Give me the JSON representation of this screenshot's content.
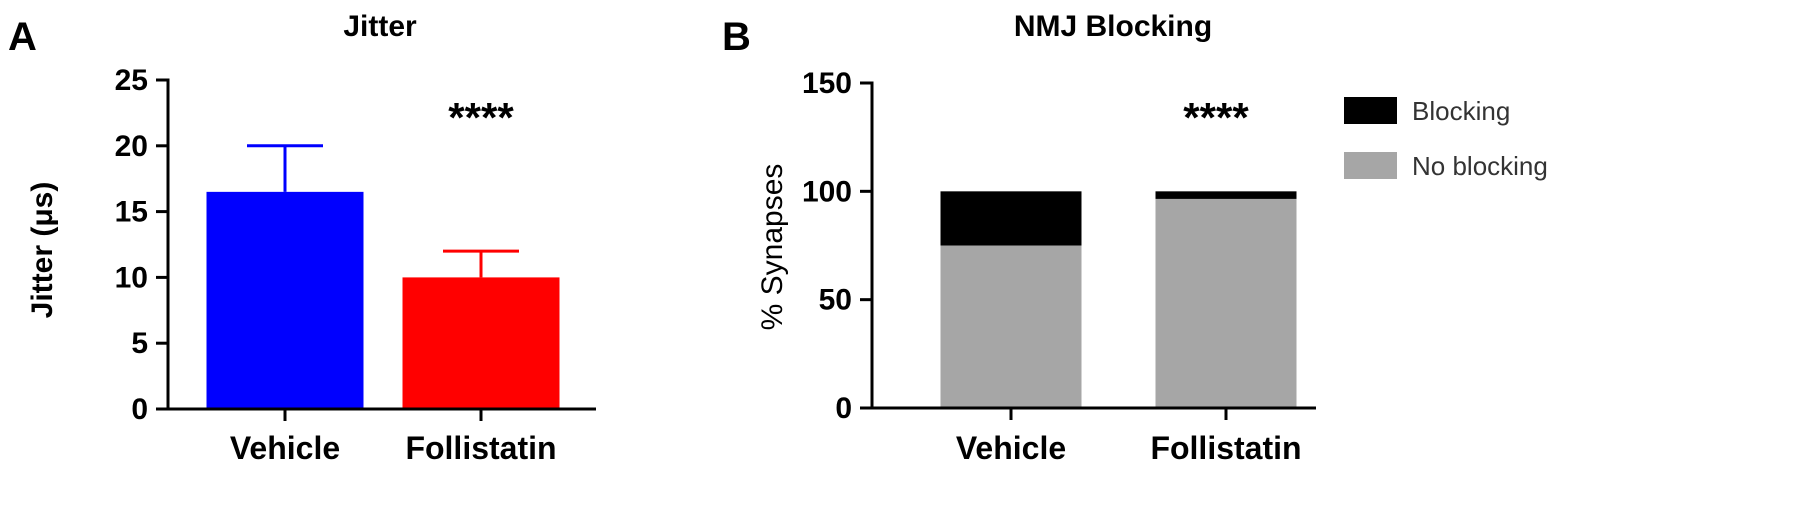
{
  "chart_data": [
    {
      "panel": "A",
      "type": "bar",
      "title": "Jitter",
      "ylabel": "Jitter (μs)",
      "ylim": [
        0,
        25
      ],
      "yticks": [
        0,
        5,
        10,
        15,
        20,
        25
      ],
      "categories": [
        "Vehicle",
        "Follistatin"
      ],
      "values": [
        16.5,
        10
      ],
      "errors": [
        3.5,
        2
      ],
      "colors": [
        "#0000ff",
        "#ff0000"
      ],
      "annotation": "****"
    },
    {
      "panel": "B",
      "type": "bar",
      "stacked": true,
      "title": "NMJ Blocking",
      "ylabel": "% Synapses",
      "ylim": [
        0,
        150
      ],
      "yticks": [
        0,
        50,
        100,
        150
      ],
      "categories": [
        "Vehicle",
        "Follistatin"
      ],
      "series": [
        {
          "name": "No blocking",
          "values": [
            75,
            96.5
          ],
          "color": "#a6a6a6"
        },
        {
          "name": "Blocking",
          "values": [
            25,
            3.5
          ],
          "color": "#000000"
        }
      ],
      "legend": {
        "position": "top-right",
        "order": [
          "Blocking",
          "No blocking"
        ]
      },
      "annotation": "****"
    }
  ]
}
